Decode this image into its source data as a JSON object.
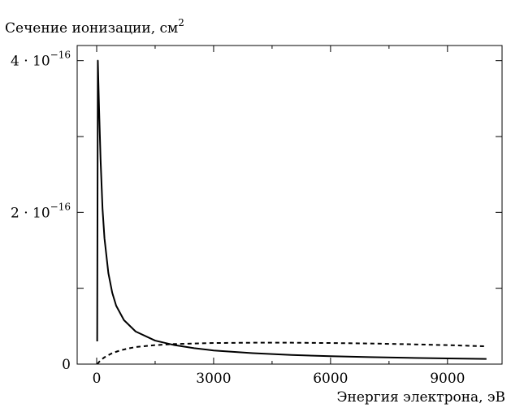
{
  "chart_data": {
    "type": "line",
    "title": "",
    "ylabel": "Сечение ионизации, см",
    "ylabel_sup": "2",
    "xlabel": "Энергия электрона, эВ",
    "xlim": [
      -500,
      10400
    ],
    "ylim": [
      0,
      4.2e-16
    ],
    "x_ticks": [
      {
        "value": 0,
        "label": "0"
      },
      {
        "value": 3000,
        "label": "3000"
      },
      {
        "value": 6000,
        "label": "6000"
      },
      {
        "value": 9000,
        "label": "9000"
      }
    ],
    "y_ticks": [
      {
        "value": 0,
        "label_base": "0",
        "label_exp": ""
      },
      {
        "value": 1e-16,
        "label_base": "",
        "label_exp": ""
      },
      {
        "value": 2e-16,
        "label_base": "2 · 10",
        "label_exp": "−16"
      },
      {
        "value": 3e-16,
        "label_base": "",
        "label_exp": ""
      },
      {
        "value": 4e-16,
        "label_base": "4 · 10",
        "label_exp": "−16"
      }
    ],
    "minor_x_ticks": [
      1500,
      4500,
      7500
    ],
    "grid": false,
    "series": [
      {
        "style": "solid",
        "color": "#000000",
        "x": [
          13.6,
          30,
          60,
          100,
          150,
          200,
          300,
          400,
          500,
          700,
          1000,
          1500,
          2000,
          2500,
          3000,
          4000,
          5000,
          6000,
          7000,
          8000,
          9000,
          10000
        ],
        "y": [
          3e-17,
          4e-16,
          3.4e-16,
          2.7e-16,
          2.05e-16,
          1.66e-16,
          1.2e-16,
          9.4e-17,
          7.7e-17,
          5.8e-17,
          4.3e-17,
          3.1e-17,
          2.5e-17,
          2.1e-17,
          1.8e-17,
          1.45e-17,
          1.2e-17,
          1.05e-17,
          9.3e-18,
          8.3e-18,
          7.5e-18,
          6.8e-18
        ]
      },
      {
        "style": "dashed",
        "color": "#000000",
        "x": [
          13.6,
          100,
          200,
          400,
          600,
          800,
          1000,
          1500,
          2000,
          2500,
          3000,
          4000,
          5000,
          6000,
          7000,
          8000,
          9000,
          10000
        ],
        "y": [
          0,
          5e-18,
          9e-18,
          1.45e-17,
          1.8e-17,
          2.05e-17,
          2.25e-17,
          2.5e-17,
          2.65e-17,
          2.72e-17,
          2.78e-17,
          2.82e-17,
          2.82e-17,
          2.78e-17,
          2.72e-17,
          2.62e-17,
          2.5e-17,
          2.35e-17
        ]
      }
    ]
  }
}
